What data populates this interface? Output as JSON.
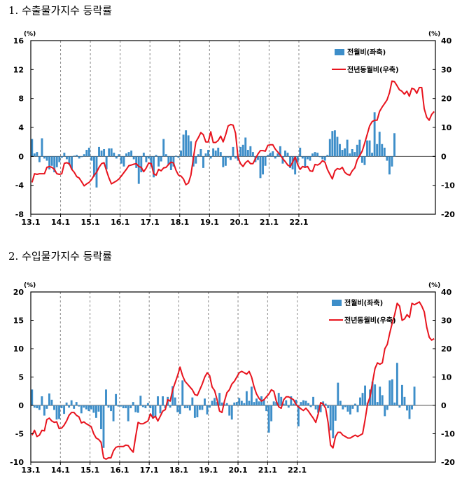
{
  "sections": [
    {
      "title": "1. 수출물가지수 등락률"
    },
    {
      "title": "2. 수입물가지수 등락률"
    }
  ],
  "colors": {
    "bar": "#3d8ec9",
    "line": "#e8141e",
    "grid": "#888888",
    "frame": "#000000"
  },
  "chart_data": [
    {
      "type": "bar+line",
      "title": "1. 수출물가지수 등락률",
      "x_tick_labels": [
        "13.1",
        "14.1",
        "15.1",
        "16.1",
        "17.1",
        "18.1",
        "19.1",
        "20.1",
        "21.1",
        "22.1"
      ],
      "y_left": {
        "unit": "(%)",
        "range": [
          -8,
          16
        ],
        "ticks": [
          -8,
          -4,
          0,
          4,
          8,
          12,
          16
        ]
      },
      "y_right": {
        "unit": "(%)",
        "range": [
          -20,
          40
        ],
        "ticks": [
          -20,
          -10,
          0,
          10,
          20,
          30,
          40
        ]
      },
      "legend_position": "top-right",
      "grid": "vertical dashed at each year",
      "series": [
        {
          "name": "전월비(좌축)",
          "type": "bar",
          "axis": "left",
          "values": [
            2.4,
            0.4,
            0.6,
            -0.8,
            2.5,
            -0.3,
            -0.6,
            -1.8,
            -1.3,
            -2.2,
            -1.5,
            -0.8,
            -0.2,
            0.5,
            -0.4,
            -1.2,
            -1.8,
            0.1,
            0.2,
            -0.3,
            -0.1,
            0.3,
            0.9,
            1.2,
            -0.6,
            -2.8,
            -4.3,
            1.3,
            0.8,
            1.0,
            -1.8,
            1.1,
            1.1,
            0.5,
            -0.3,
            0.3,
            -1.0,
            -1.4,
            0.4,
            0.6,
            0.8,
            -0.4,
            -1.6,
            -3.8,
            -2.2,
            0.5,
            -0.8,
            -0.3,
            -1.4,
            -2.9,
            0.2,
            -1.4,
            -0.7,
            2.4,
            0.3,
            -1.1,
            -1.9,
            -1.4,
            0.1,
            -0.2,
            0.8,
            3.0,
            3.6,
            2.9,
            2.1,
            -1.4,
            -1.0,
            0.3,
            1.0,
            -1.6,
            0.4,
            0.9,
            -0.3,
            1.1,
            0.8,
            1.2,
            0.6,
            -1.5,
            -1.3,
            -0.2,
            -0.5,
            1.3,
            -0.3,
            -0.6,
            1.3,
            1.6,
            2.6,
            0.9,
            1.4,
            0.6,
            -0.8,
            -0.5,
            -3.0,
            -2.5,
            -1.3,
            0.2,
            0.5,
            0.7,
            -0.3,
            0.4,
            1.4,
            -1.0,
            0.8,
            0.5,
            -1.6,
            -1.8,
            -2.5,
            -0.8,
            1.2,
            -0.3,
            -1.5,
            -0.4,
            -0.6,
            0.4,
            0.6,
            0.5,
            -0.1,
            -0.4,
            -0.6,
            0.2,
            2.4,
            3.5,
            3.6,
            2.7,
            1.7,
            0.9,
            1.1,
            2.3,
            0.4,
            1.0,
            0.6,
            1.6,
            2.3,
            -0.9,
            -1.2,
            2.2,
            2.2,
            0.5,
            6.1,
            1.7,
            3.4,
            1.7,
            1.2,
            -0.6,
            -2.5,
            -1.4,
            3.2
          ]
        },
        {
          "name": "전년동월비(우축)",
          "type": "line",
          "axis": "right",
          "values": [
            -9,
            -6,
            -6.2,
            -6,
            -6,
            -6,
            -3.8,
            -3.5,
            -3.8,
            -4.5,
            -6,
            -6.2,
            -6,
            -2.4,
            -2.2,
            -2.5,
            -4.5,
            -5.5,
            -7,
            -7.5,
            -8.8,
            -10.2,
            -9.5,
            -9,
            -8,
            -6.5,
            -5.5,
            -3.8,
            -2.5,
            -2.2,
            -5,
            -7.5,
            -9.5,
            -9,
            -8.5,
            -7.8,
            -6.8,
            -5.6,
            -4.5,
            -3.2,
            -3,
            -2.7,
            -2.5,
            -3.5,
            -3.8,
            -5.3,
            -4,
            -2.3,
            -2.5,
            -6,
            -6.5,
            -4.5,
            -5,
            -4,
            -3.8,
            -2.8,
            -2,
            -2.3,
            -4.8,
            -6.5,
            -6.8,
            -7.8,
            -9.8,
            -9.2,
            -6.5,
            -0.5,
            5,
            6.5,
            8.2,
            7.5,
            5,
            5,
            8.5,
            4.8,
            4.8,
            5.5,
            7,
            5,
            7.5,
            10.5,
            11,
            10.8,
            8,
            -0.5,
            -2.5,
            -3.5,
            -2.2,
            -1.5,
            -2.5,
            -2.5,
            -0.8,
            0.8,
            2,
            2,
            1.8,
            3.8,
            4,
            4,
            2.5,
            1.5,
            0.5,
            -0.8,
            -1.8,
            -3,
            -3.5,
            -2,
            -0.2,
            -2.8,
            -4.5,
            -3.5,
            -3.8,
            -3.5,
            -5,
            -5.2,
            -2.8,
            -3,
            -2.5,
            -1.5,
            -2,
            -4.5,
            -6.2,
            -7.8,
            -5,
            -4.2,
            -4.5,
            -3.8,
            -5.5,
            -6.2,
            -6.5,
            -5,
            -4,
            -1.2,
            0.2,
            1.8,
            4.5,
            7.5,
            10.5,
            12,
            12.5,
            12.5,
            15.5,
            17,
            18.2,
            19.5,
            22,
            26,
            25.8,
            24.5,
            23,
            22.5,
            21.5,
            22.5,
            20.8,
            23.5,
            23.2,
            21.8,
            23.8,
            23.8,
            16.5,
            13.5,
            12.5,
            14.5,
            15.5
          ]
        }
      ]
    },
    {
      "type": "bar+line",
      "title": "2. 수입물가지수 등락률",
      "x_tick_labels": [
        "13.1",
        "14.1",
        "15.1",
        "16.1",
        "17.1",
        "18.1",
        "19.1",
        "20.1",
        "21.1",
        "22.1"
      ],
      "y_left": {
        "unit": "(%)",
        "range": [
          -10,
          20
        ],
        "ticks": [
          -10,
          -5,
          0,
          5,
          10,
          15,
          20
        ]
      },
      "y_right": {
        "unit": "(%)",
        "range": [
          -20,
          40
        ],
        "ticks": [
          -20,
          -10,
          0,
          10,
          20,
          30,
          40
        ]
      },
      "legend_position": "top-right",
      "grid": "vertical dashed at each year",
      "series": [
        {
          "name": "전월비(좌축)",
          "type": "bar",
          "axis": "left",
          "values": [
            2.8,
            -0.4,
            -0.5,
            -0.8,
            1.6,
            -1.8,
            -0.6,
            2.1,
            1.0,
            -0.8,
            -2.5,
            -2.4,
            -0.5,
            -1.5,
            0.5,
            -0.4,
            0.9,
            -0.6,
            0.6,
            -0.2,
            -1.4,
            -0.4,
            -0.7,
            -1.0,
            -0.7,
            -1.3,
            -2.2,
            -1.1,
            -4.2,
            -7.5,
            2.8,
            -0.4,
            -1.0,
            -2.8,
            2.0,
            -0.2,
            -0.2,
            -0.5,
            -0.5,
            -2.8,
            -0.5,
            0.6,
            -1.2,
            -1.3,
            1.7,
            -0.3,
            -0.5,
            0.4,
            -0.5,
            -2.3,
            -2.0,
            1.6,
            -1.4,
            1.6,
            -0.5,
            1.5,
            -0.4,
            3.4,
            1.4,
            -1.2,
            -1.5,
            4.4,
            -0.5,
            -0.5,
            -0.9,
            1.4,
            -2.2,
            -2.1,
            -0.8,
            -0.8,
            1.2,
            -1.6,
            -0.4,
            0.8,
            1.3,
            0.6,
            2.2,
            0.5,
            0.2,
            0.4,
            -1.8,
            -2.5,
            0.5,
            0.6,
            1.3,
            0.8,
            0.4,
            2.5,
            0.8,
            3.3,
            0.6,
            1.2,
            0.7,
            1.6,
            1.0,
            -1.0,
            -4.8,
            -2.8,
            0.7,
            0.6,
            2.2,
            1.5,
            0.3,
            0.9,
            -0.4,
            1.6,
            0.3,
            1.0,
            -3.7,
            0.6,
            0.9,
            0.8,
            0.4,
            -0.3,
            1.5,
            -0.7,
            -1.3,
            -1.2,
            0.7,
            0.3,
            -0.5,
            -4.4,
            -5.8,
            -2.7,
            4.0,
            0.8,
            -0.7,
            -0.3,
            -1.1,
            -1.6,
            -0.6,
            0.3,
            -1.2,
            1.4,
            2.2,
            3.5,
            0.5,
            2.8,
            4.2,
            3.7,
            0.6,
            3.3,
            1.8,
            -1.9,
            -0.8,
            4.4,
            4.6,
            0.5,
            7.5,
            -0.4,
            3.6,
            1.5,
            -0.9,
            -2.4,
            -0.7,
            3.3
          ]
        },
        {
          "name": "전년동월비(우축)",
          "type": "line",
          "axis": "right",
          "values": [
            -10.5,
            -8.8,
            -11,
            -10.5,
            -8.8,
            -9,
            -5,
            -4.5,
            -5.5,
            -6,
            -5.8,
            -8.2,
            -8,
            -7,
            -5.5,
            -3.5,
            -2.5,
            -2.5,
            -3.5,
            -4,
            -6.2,
            -5.8,
            -6.5,
            -7,
            -7.5,
            -10,
            -11.5,
            -12,
            -13,
            -18.5,
            -19,
            -18.5,
            -18.5,
            -16,
            -14.8,
            -14.5,
            -14.5,
            -14.5,
            -14,
            -14.2,
            -15.5,
            -16.5,
            -11,
            -6,
            -6.5,
            -6.5,
            -6,
            -5.5,
            -3,
            -4.5,
            -3.8,
            -5.5,
            -3.8,
            -2,
            -1.5,
            2,
            1.5,
            5.5,
            8,
            10.5,
            13.5,
            10.5,
            8.5,
            7.5,
            6.5,
            5.5,
            3.8,
            3.5,
            5.5,
            7.5,
            10,
            11.5,
            10.5,
            6.5,
            5.2,
            2,
            -2,
            -2.5,
            1.5,
            4.5,
            5.5,
            7.5,
            8.5,
            10,
            11.5,
            12,
            11.5,
            11,
            12,
            10,
            6.5,
            4,
            2.5,
            1.5,
            2,
            3,
            4,
            5.5,
            5,
            1.5,
            -0.5,
            -1,
            2,
            3,
            3,
            2.5,
            2,
            0.3,
            -0.5,
            -1.2,
            -1.8,
            -1,
            -2,
            -3.3,
            -4.5,
            -6,
            -3,
            1,
            0.5,
            -1,
            -6,
            -14,
            -15,
            -11,
            -9.5,
            -9.5,
            -10.5,
            -11,
            -11.5,
            -11.5,
            -11,
            -10.5,
            -11,
            -10.5,
            -10,
            -5,
            0.5,
            3,
            8,
            13,
            15,
            14.5,
            15,
            20,
            21.5,
            25.5,
            29,
            32,
            36,
            35,
            30,
            30.5,
            32,
            31,
            36,
            35.5,
            36,
            36.5,
            35,
            33,
            27.5,
            24,
            23,
            23.5
          ]
        }
      ]
    }
  ]
}
